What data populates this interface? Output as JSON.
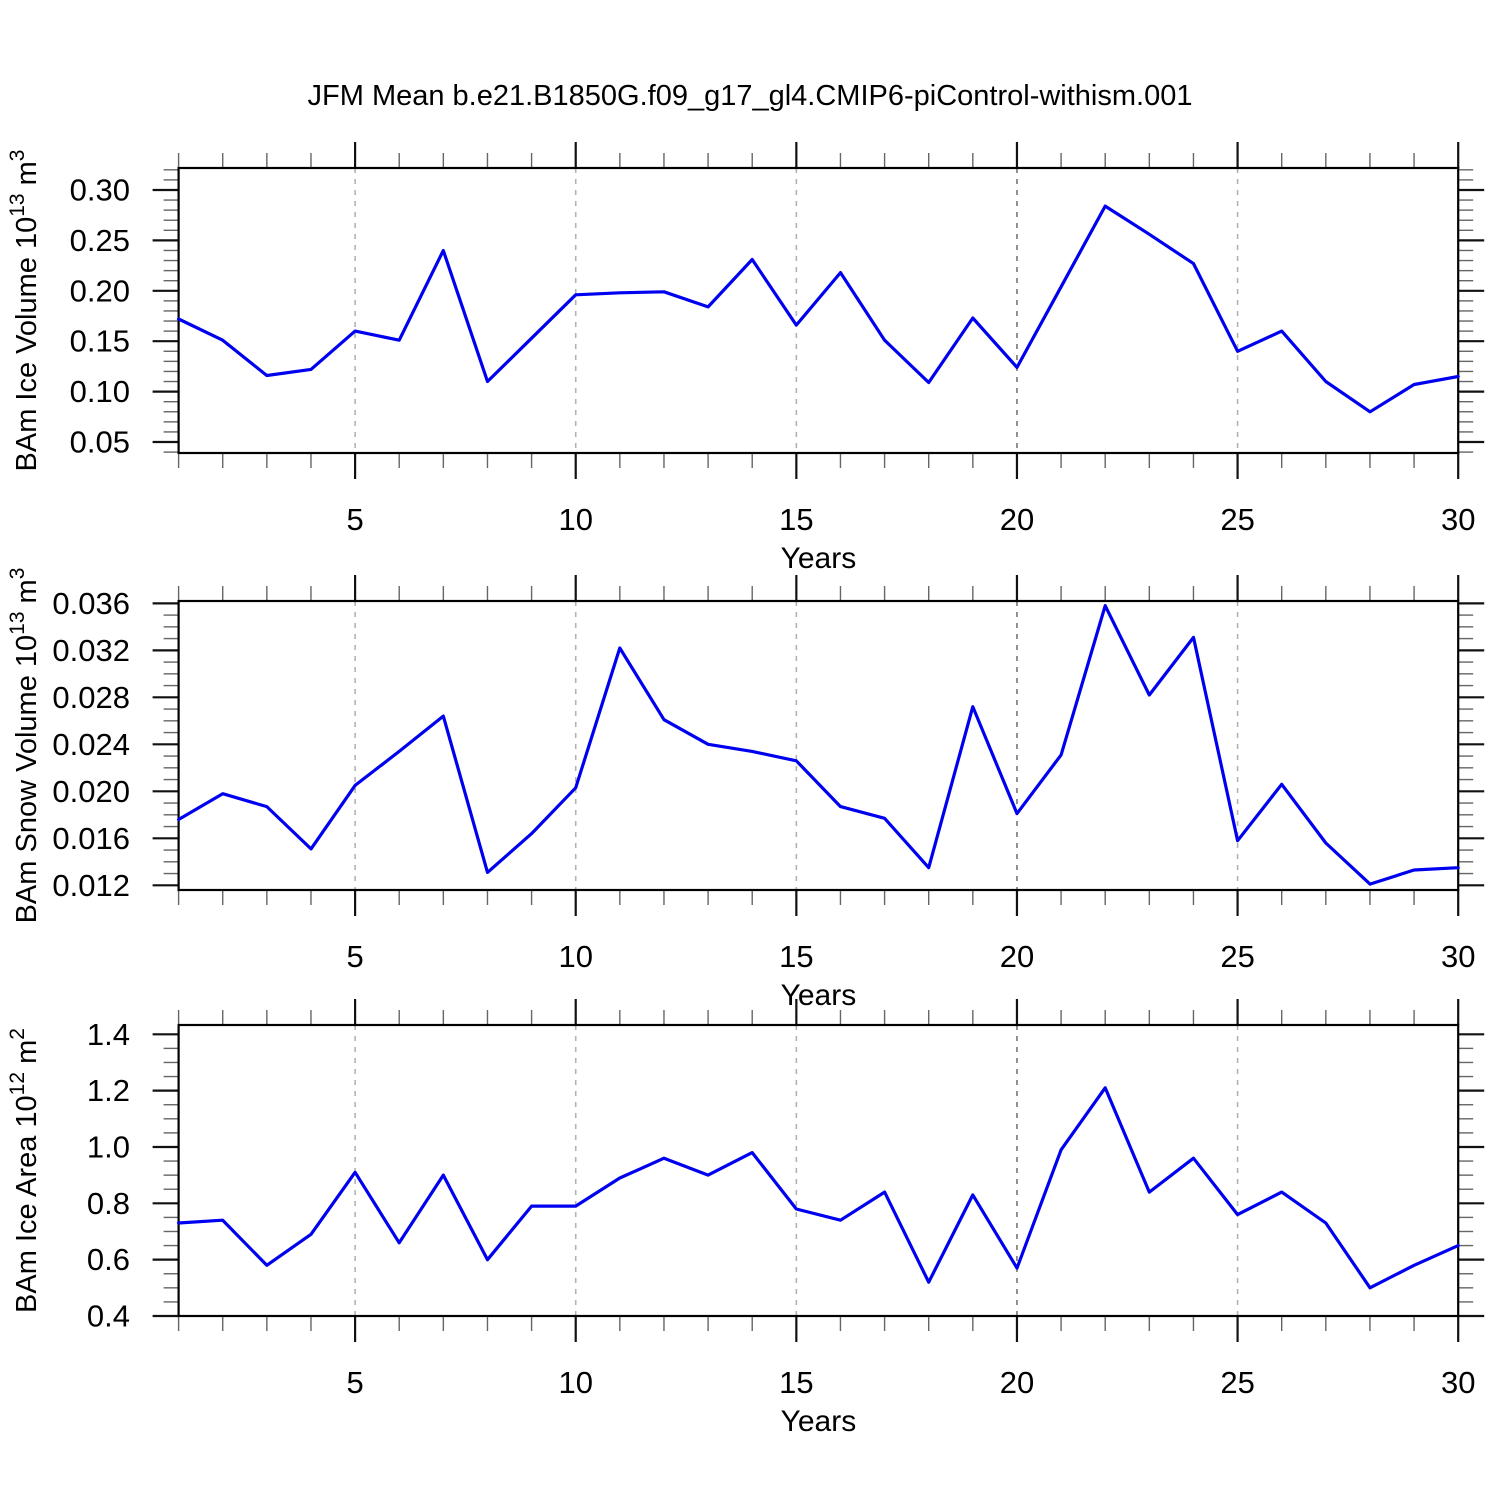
{
  "title": "JFM Mean b.e21.B1850G.f09_g17_gl4.CMIP6-piControl-withism.001",
  "colors": {
    "line": "#0000f0",
    "frame": "#000000",
    "grid_light": "#b3b3b3",
    "grid_dark": "#777777",
    "tick_major": "#111111",
    "tick_minor": "#666666"
  },
  "x_axis": {
    "label": "Years",
    "major_ticks": [
      5,
      10,
      15,
      20,
      25,
      30
    ],
    "minor_step": 1,
    "gridlines": [
      5,
      10,
      15,
      20,
      25
    ],
    "dark_gridline": 20,
    "x_start": 1,
    "x_end": 30
  },
  "chart_data": [
    {
      "type": "line",
      "name": "ice-volume",
      "ylabel_parts": [
        {
          "text": "BAm Ice Volume 10"
        },
        {
          "text": "13",
          "sup": true
        },
        {
          "text": " m"
        },
        {
          "text": "3",
          "sup": true
        }
      ],
      "xlabel": "Years",
      "ylim": [
        0.0391,
        0.3218
      ],
      "yticks": [
        0.05,
        0.1,
        0.15,
        0.2,
        0.25,
        0.3
      ],
      "ytick_labels": [
        "0.05",
        "0.10",
        "0.15",
        "0.20",
        "0.25",
        "0.30"
      ],
      "yminor_step": 0.01,
      "x_start": 1,
      "values": [
        0.172,
        0.151,
        0.116,
        0.122,
        0.16,
        0.151,
        0.24,
        0.11,
        0.153,
        0.196,
        0.198,
        0.199,
        0.184,
        0.231,
        0.166,
        0.218,
        0.151,
        0.109,
        0.173,
        0.124,
        0.204,
        0.284,
        0.256,
        0.227,
        0.14,
        0.16,
        0.11,
        0.08,
        0.107,
        0.115
      ]
    },
    {
      "type": "line",
      "name": "snow-volume",
      "ylabel_parts": [
        {
          "text": "BAm Snow Volume 10"
        },
        {
          "text": "13",
          "sup": true
        },
        {
          "text": " m"
        },
        {
          "text": "3",
          "sup": true
        }
      ],
      "xlabel": "Years",
      "ylim": [
        0.0116,
        0.0362
      ],
      "yticks": [
        0.012,
        0.016,
        0.02,
        0.024,
        0.028,
        0.032,
        0.036
      ],
      "ytick_labels": [
        "0.012",
        "0.016",
        "0.020",
        "0.024",
        "0.028",
        "0.032",
        "0.036"
      ],
      "yminor_step": 0.001,
      "x_start": 1,
      "values": [
        0.0176,
        0.0198,
        0.0187,
        0.0151,
        0.0205,
        0.0234,
        0.0264,
        0.0131,
        0.0164,
        0.0203,
        0.0322,
        0.0261,
        0.024,
        0.0234,
        0.0226,
        0.0187,
        0.0177,
        0.0135,
        0.0272,
        0.0181,
        0.0231,
        0.0358,
        0.0282,
        0.0331,
        0.0158,
        0.0206,
        0.0156,
        0.0121,
        0.0133,
        0.0135
      ]
    },
    {
      "type": "line",
      "name": "ice-area",
      "ylabel_parts": [
        {
          "text": "BAm Ice Area 10"
        },
        {
          "text": "12",
          "sup": true
        },
        {
          "text": " m"
        },
        {
          "text": "2",
          "sup": true
        }
      ],
      "xlabel": "Years",
      "ylim": [
        0.4,
        1.433
      ],
      "yticks": [
        0.4,
        0.6,
        0.8,
        1.0,
        1.2,
        1.4
      ],
      "ytick_labels": [
        "0.4",
        "0.6",
        "0.8",
        "1.0",
        "1.2",
        "1.4"
      ],
      "yminor_step": 0.05,
      "x_start": 1,
      "values": [
        0.73,
        0.74,
        0.58,
        0.69,
        0.91,
        0.66,
        0.9,
        0.6,
        0.79,
        0.79,
        0.89,
        0.96,
        0.9,
        0.98,
        0.78,
        0.74,
        0.84,
        0.52,
        0.83,
        0.57,
        0.99,
        1.21,
        0.84,
        0.96,
        0.76,
        0.84,
        0.73,
        0.5,
        0.58,
        0.65
      ]
    }
  ]
}
